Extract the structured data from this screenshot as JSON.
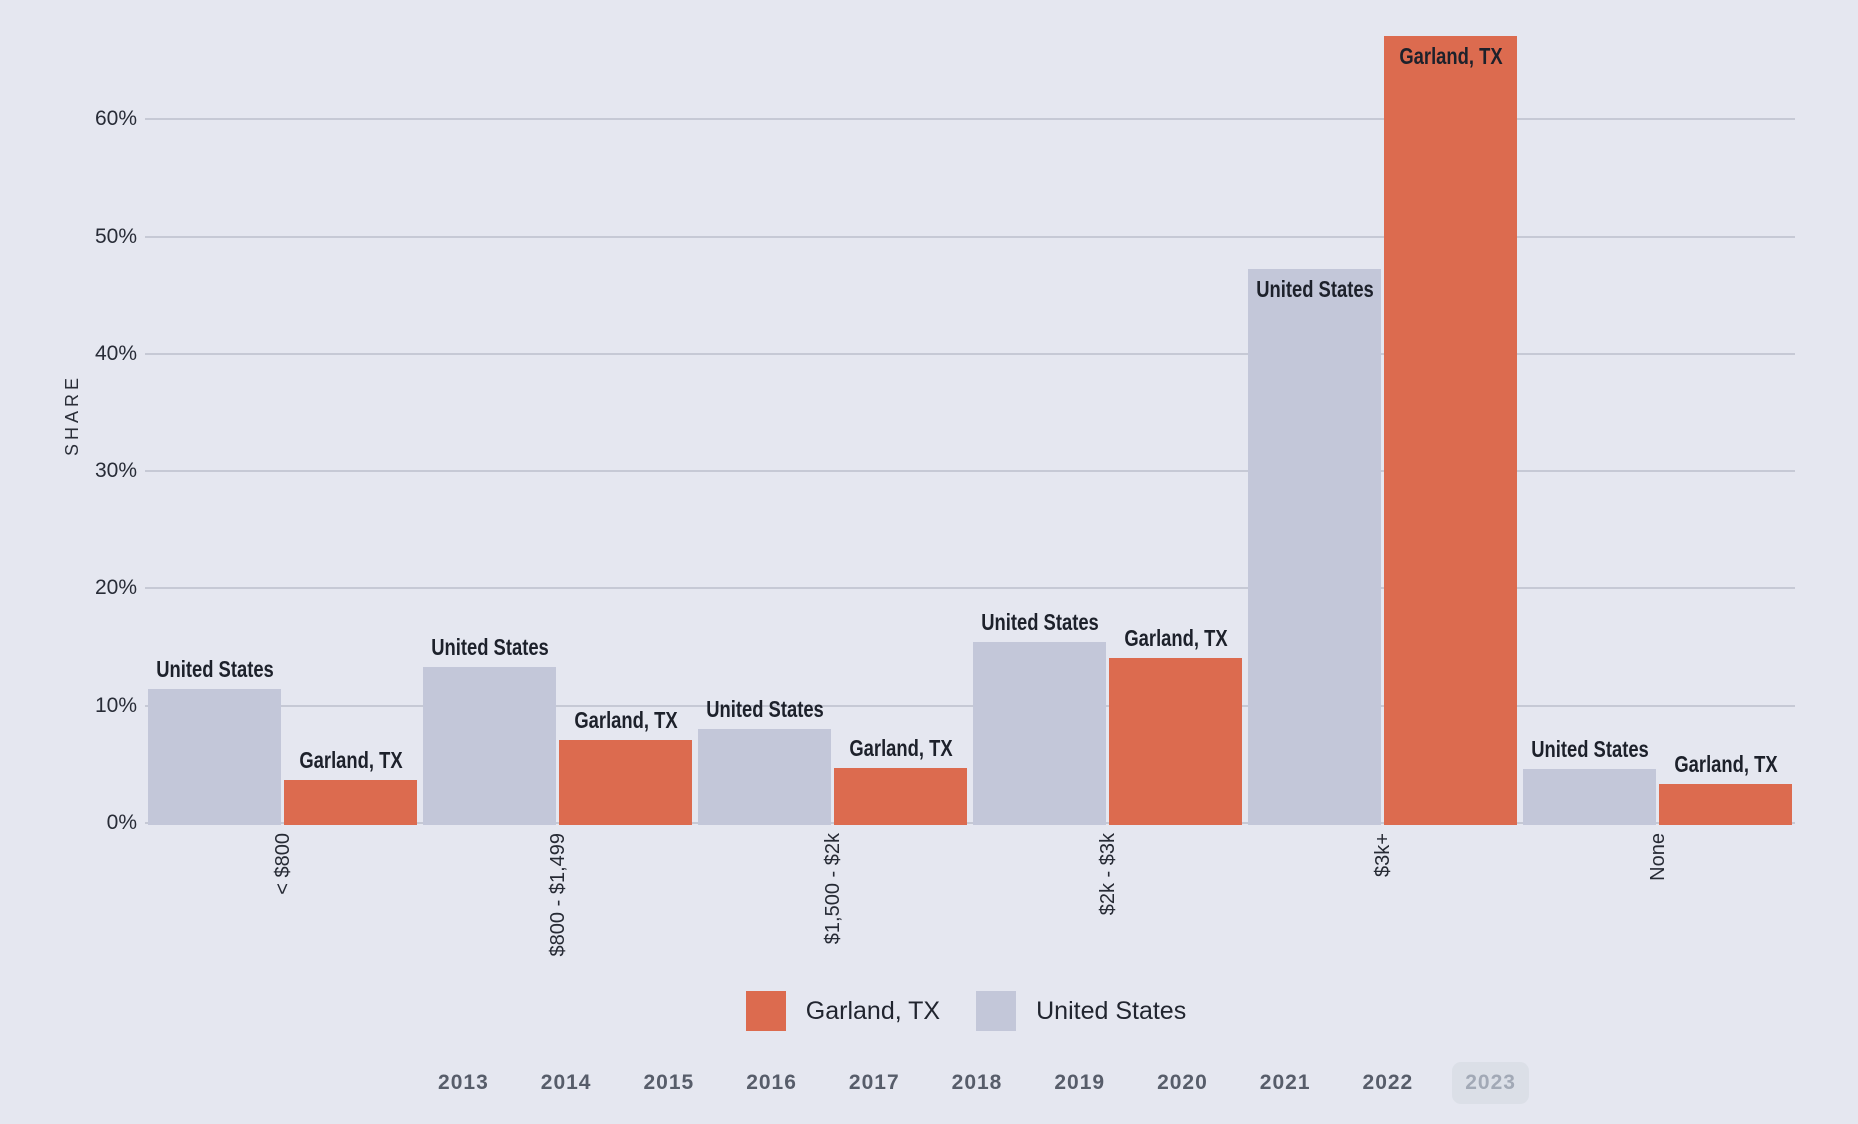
{
  "chart_data": {
    "type": "bar",
    "ylabel": "SHARE",
    "categories": [
      "< $800",
      "$800 - $1,499",
      "$1,500 - $2k",
      "$2k - $3k",
      "$3k+",
      "None"
    ],
    "series": [
      {
        "name": "United States",
        "color": "#c3c7d9",
        "values": [
          11.4,
          13.3,
          8.0,
          15.4,
          47.2,
          4.6
        ]
      },
      {
        "name": "Garland, TX",
        "color": "#dc6b4f",
        "values": [
          3.7,
          7.1,
          4.7,
          14.1,
          67.1,
          3.3
        ]
      }
    ],
    "yticks": [
      "0%",
      "10%",
      "20%",
      "30%",
      "40%",
      "50%",
      "60%"
    ],
    "ylim": [
      0,
      67.5
    ],
    "grid": "horizontal",
    "legend_position": "bottom",
    "background": "#e5e7f0"
  },
  "legend": [
    {
      "label": "Garland, TX",
      "color": "#dc6b4f"
    },
    {
      "label": "United States",
      "color": "#c3c7d9"
    }
  ],
  "years": {
    "items": [
      "2013",
      "2014",
      "2015",
      "2016",
      "2017",
      "2018",
      "2019",
      "2020",
      "2021",
      "2022",
      "2023"
    ],
    "selected": "2023"
  }
}
